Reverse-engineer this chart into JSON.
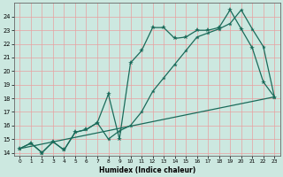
{
  "xlabel": "Humidex (Indice chaleur)",
  "bg_color": "#cce8e0",
  "line_color": "#1a6b5a",
  "grid_color": "#e8a0a0",
  "xlim": [
    -0.5,
    23.5
  ],
  "ylim": [
    13.8,
    25.0
  ],
  "xtick_labels": [
    "0",
    "1",
    "2",
    "3",
    "4",
    "5",
    "6",
    "7",
    "8",
    "9",
    "10",
    "11",
    "12",
    "13",
    "14",
    "15",
    "16",
    "17",
    "18",
    "19",
    "20",
    "21",
    "22",
    "23"
  ],
  "ytick_labels": [
    "14",
    "15",
    "16",
    "17",
    "18",
    "19",
    "20",
    "21",
    "22",
    "23",
    "24"
  ],
  "line_jagged": {
    "x": [
      0,
      1,
      2,
      3,
      4,
      5,
      6,
      7,
      8,
      9,
      10,
      11,
      12,
      13,
      14,
      15,
      16,
      17,
      18,
      19,
      20,
      21,
      22,
      23
    ],
    "y": [
      14.3,
      14.7,
      14.0,
      14.8,
      14.2,
      15.5,
      15.7,
      16.2,
      18.3,
      15.0,
      20.6,
      21.5,
      23.2,
      23.2,
      22.4,
      22.5,
      23.0,
      23.0,
      23.2,
      24.5,
      23.1,
      21.7,
      19.2,
      18.1
    ]
  },
  "line_smooth": {
    "x": [
      0,
      1,
      2,
      3,
      4,
      5,
      6,
      7,
      8,
      9,
      10,
      11,
      12,
      13,
      14,
      15,
      16,
      17,
      18,
      19,
      20,
      21,
      22,
      23
    ],
    "y": [
      14.3,
      14.7,
      14.0,
      14.8,
      14.2,
      15.5,
      15.7,
      16.2,
      15.0,
      15.6,
      16.0,
      17.0,
      18.5,
      19.5,
      20.5,
      21.5,
      22.5,
      22.8,
      23.1,
      23.5,
      24.5,
      23.1,
      21.8,
      18.1
    ]
  },
  "line_straight": {
    "x": [
      0,
      23
    ],
    "y": [
      14.3,
      18.1
    ]
  }
}
